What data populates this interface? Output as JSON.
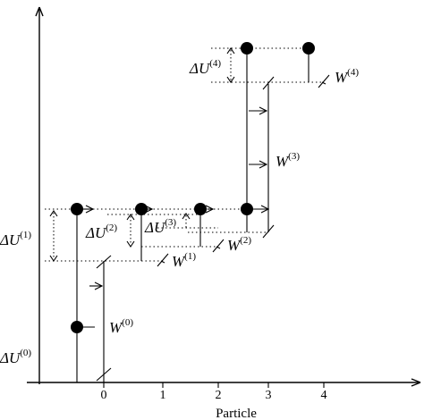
{
  "axis": {
    "xlabel": "Particle",
    "ticks": [
      "0",
      "1",
      "2",
      "3",
      "4"
    ]
  },
  "labels": {
    "du0": {
      "sym": "ΔU",
      "sup": "(0)"
    },
    "du1": {
      "sym": "ΔU",
      "sup": "(1)"
    },
    "du2": {
      "sym": "ΔU",
      "sup": "(2)"
    },
    "du3": {
      "sym": "ΔU",
      "sup": "(3)"
    },
    "du4": {
      "sym": "ΔU",
      "sup": "(4)"
    },
    "w0": {
      "sym": "W",
      "sup": "(0)"
    },
    "w1": {
      "sym": "W",
      "sup": "(1)"
    },
    "w2": {
      "sym": "W",
      "sup": "(2)"
    },
    "w3": {
      "sym": "W",
      "sup": "(3)"
    },
    "w4": {
      "sym": "W",
      "sup": "(4)"
    }
  }
}
